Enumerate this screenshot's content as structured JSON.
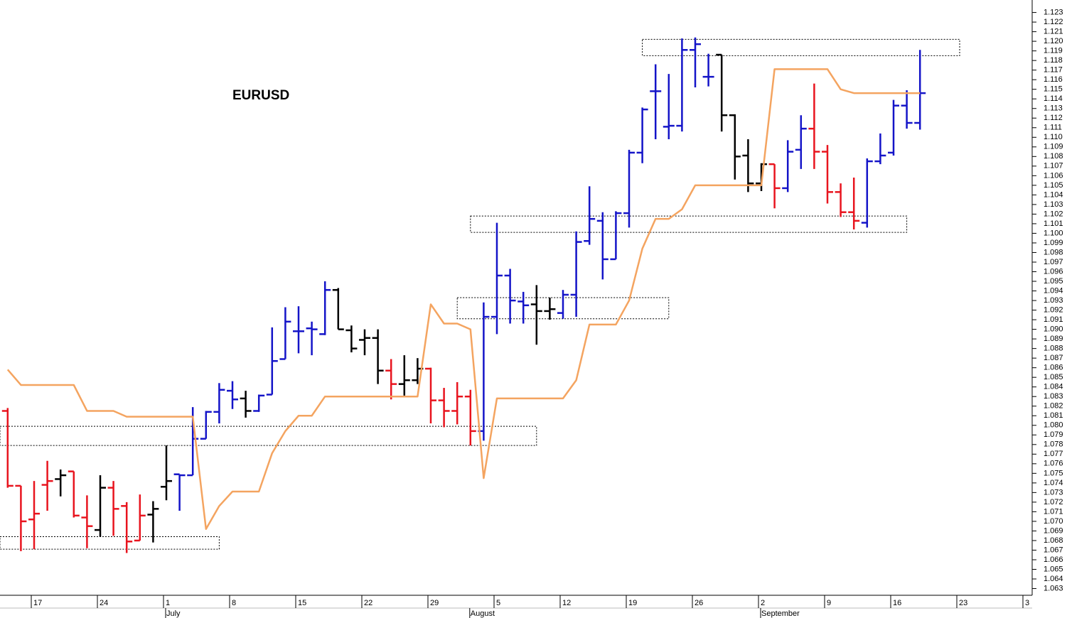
{
  "chart_data": {
    "type": "ohlc",
    "title": "EURUSD",
    "categories": [
      null,
      null,
      "17",
      null,
      null,
      null,
      null,
      "24",
      null,
      null,
      null,
      null,
      "1",
      null,
      null,
      null,
      null,
      "8",
      null,
      null,
      null,
      null,
      "15",
      null,
      null,
      null,
      null,
      "22",
      null,
      null,
      null,
      null,
      "29",
      null,
      null,
      null,
      null,
      "5",
      null,
      null,
      null,
      null,
      "12",
      null,
      null,
      null,
      null,
      "19",
      null,
      null,
      null,
      null,
      "26",
      null,
      null,
      null,
      null,
      "2",
      null,
      null,
      null,
      null,
      "9",
      null,
      null,
      null,
      null,
      "16",
      null,
      null,
      null,
      null,
      "23",
      null,
      null,
      null,
      null,
      "3"
    ],
    "months": [
      {
        "label": "July",
        "index": 12
      },
      {
        "label": "August",
        "index": 35
      },
      {
        "label": "September",
        "index": 57
      }
    ],
    "open": [
      1.0815,
      1.0737,
      1.0702,
      1.0738,
      1.0744,
      1.0752,
      1.0704,
      1.0691,
      1.0735,
      1.0716,
      1.068,
      1.0707,
      1.0736,
      1.0749,
      1.0748,
      1.0786,
      1.0814,
      1.0836,
      1.0828,
      1.0815,
      1.0832,
      1.0869,
      1.0898,
      1.0901,
      1.0895,
      1.0941,
      1.0899,
      1.0889,
      1.0891,
      1.0857,
      1.0843,
      1.0847,
      1.0859,
      1.0826,
      1.0815,
      1.083,
      1.0794,
      1.0913,
      1.0956,
      1.0929,
      1.0926,
      1.0919,
      1.0917,
      1.0936,
      1.0992,
      1.1013,
      1.0973,
      1.1021,
      1.1084,
      1.1148,
      1.1111,
      1.1112,
      1.1191,
      1.1163,
      1.1186,
      1.1123,
      1.1081,
      1.1052,
      1.1072,
      1.1047,
      1.1087,
      1.1109,
      1.1085,
      1.1043,
      1.1022,
      1.1011,
      1.1075,
      1.1084,
      1.1133,
      1.1115,
      null,
      null,
      null,
      null,
      null,
      null,
      null,
      null
    ],
    "high": [
      1.0818,
      1.0737,
      1.0742,
      1.0763,
      1.0754,
      1.0752,
      1.0727,
      1.0748,
      1.0742,
      1.072,
      1.0728,
      1.0721,
      1.0779,
      1.0749,
      1.0819,
      1.0815,
      1.0844,
      1.0846,
      1.0836,
      1.0832,
      1.0902,
      1.0923,
      1.0924,
      1.0908,
      1.095,
      1.0943,
      1.0904,
      1.09,
      1.09,
      1.0869,
      1.0873,
      1.087,
      1.086,
      1.0839,
      1.0845,
      1.0837,
      1.0928,
      1.1011,
      1.0963,
      1.0939,
      1.0946,
      1.0933,
      1.0941,
      1.1002,
      1.1049,
      1.1022,
      1.1023,
      1.1087,
      1.1131,
      1.1176,
      1.1166,
      1.1203,
      1.1204,
      1.1187,
      1.1186,
      1.1124,
      1.1098,
      1.1073,
      1.1072,
      1.1097,
      1.1123,
      1.1156,
      1.1092,
      1.1052,
      1.1058,
      1.1078,
      1.1104,
      1.1139,
      1.1149,
      1.1191,
      null,
      null,
      null,
      null,
      null,
      null,
      null,
      null
    ],
    "low": [
      1.0735,
      1.0669,
      1.0671,
      1.0711,
      1.0726,
      1.0704,
      1.0672,
      1.0684,
      1.0685,
      1.0667,
      1.068,
      1.0678,
      1.0722,
      1.0711,
      1.0748,
      1.0786,
      1.0802,
      1.0817,
      1.0808,
      1.0814,
      1.0832,
      1.0869,
      1.0875,
      1.0873,
      1.0894,
      1.09,
      1.0876,
      1.0873,
      1.0843,
      1.0827,
      1.0831,
      1.0843,
      1.0802,
      1.0798,
      1.0801,
      1.0779,
      1.0784,
      1.0895,
      1.0906,
      1.0906,
      1.0884,
      1.091,
      1.0911,
      1.0913,
      1.0988,
      1.0952,
      1.0973,
      1.1006,
      1.1073,
      1.1098,
      1.1098,
      1.1106,
      1.1152,
      1.1153,
      1.1106,
      1.1056,
      1.1043,
      1.1044,
      1.1026,
      1.1043,
      1.1067,
      1.1067,
      1.1031,
      1.1017,
      1.1004,
      1.1006,
      1.1072,
      1.1081,
      1.1109,
      1.1108,
      null,
      null,
      null,
      null,
      null,
      null,
      null,
      null
    ],
    "close": [
      1.0737,
      1.07,
      1.0708,
      1.0742,
      1.0748,
      1.0706,
      1.0695,
      1.0735,
      1.0713,
      1.0679,
      1.0706,
      1.0713,
      1.0742,
      1.0748,
      1.0786,
      1.0814,
      1.0837,
      1.0827,
      1.0815,
      1.0831,
      1.0867,
      1.0908,
      1.0898,
      1.09,
      1.0941,
      1.09,
      1.088,
      1.0891,
      1.0857,
      1.0843,
      1.0847,
      1.0859,
      1.0826,
      1.0815,
      1.083,
      1.0794,
      1.0913,
      1.0956,
      1.093,
      1.0925,
      1.0919,
      1.0921,
      1.0936,
      1.0991,
      1.1015,
      1.0973,
      1.1021,
      1.1084,
      1.1129,
      1.1148,
      1.1112,
      1.1191,
      1.1197,
      1.1163,
      1.1123,
      1.108,
      1.1052,
      1.1072,
      1.1047,
      1.1085,
      1.1109,
      1.1085,
      1.1043,
      1.1022,
      1.1013,
      1.1075,
      1.1081,
      1.1133,
      1.1115,
      1.1146,
      null,
      null,
      null,
      null,
      null,
      null,
      null,
      null
    ],
    "bar_colors": [
      "#e8141e",
      "#e8141e",
      "#e8141e",
      "#e8141e",
      "#000000",
      "#e8141e",
      "#e8141e",
      "#000000",
      "#e8141e",
      "#e8141e",
      "#e8141e",
      "#000000",
      "#000000",
      "#1414c8",
      "#1414c8",
      "#1414c8",
      "#1414c8",
      "#1414c8",
      "#000000",
      "#1414c8",
      "#1414c8",
      "#1414c8",
      "#1414c8",
      "#1414c8",
      "#1414c8",
      "#000000",
      "#000000",
      "#000000",
      "#000000",
      "#e8141e",
      "#000000",
      "#000000",
      "#e8141e",
      "#e8141e",
      "#e8141e",
      "#e8141e",
      "#1414c8",
      "#1414c8",
      "#1414c8",
      "#1414c8",
      "#000000",
      "#000000",
      "#1414c8",
      "#1414c8",
      "#1414c8",
      "#1414c8",
      "#1414c8",
      "#1414c8",
      "#1414c8",
      "#1414c8",
      "#1414c8",
      "#1414c8",
      "#1414c8",
      "#1414c8",
      "#000000",
      "#000000",
      "#000000",
      "#000000",
      "#e8141e",
      "#1414c8",
      "#1414c8",
      "#e8141e",
      "#e8141e",
      "#e8141e",
      "#e8141e",
      "#1414c8",
      "#1414c8",
      "#1414c8",
      "#1414c8",
      "#1414c8",
      null,
      null,
      null,
      null,
      null,
      null,
      null,
      null
    ],
    "line": {
      "color": "#f4a460",
      "values": [
        1.0858,
        1.0842,
        1.0842,
        1.0842,
        1.0842,
        1.0842,
        1.0815,
        1.0815,
        1.0815,
        1.0809,
        1.0809,
        1.0809,
        1.0809,
        1.0809,
        1.0809,
        1.0692,
        1.0716,
        1.0731,
        1.0731,
        1.0731,
        1.0771,
        1.0794,
        1.081,
        1.081,
        1.083,
        1.083,
        1.083,
        1.083,
        1.083,
        1.083,
        1.083,
        1.083,
        1.0926,
        1.0906,
        1.0906,
        1.09,
        1.0745,
        1.0828,
        1.0828,
        1.0828,
        1.0828,
        1.0828,
        1.0828,
        1.0847,
        1.0905,
        1.0905,
        1.0905,
        1.093,
        1.0984,
        1.1015,
        1.1015,
        1.1025,
        1.105,
        1.105,
        1.105,
        1.105,
        1.105,
        1.105,
        1.1171,
        1.1171,
        1.1171,
        1.1171,
        1.1171,
        1.115,
        1.1146,
        1.1146,
        1.1146,
        1.1146,
        1.1146,
        1.1146,
        null,
        null,
        null,
        null,
        null,
        null,
        null,
        null
      ]
    },
    "zones": [
      {
        "start": -0.6,
        "end": 16,
        "low": 1.0671,
        "high": 1.0684
      },
      {
        "start": -0.6,
        "end": 40,
        "low": 1.0779,
        "high": 1.0799
      },
      {
        "start": 34,
        "end": 50,
        "low": 1.0911,
        "high": 1.0933
      },
      {
        "start": 35,
        "end": 68,
        "low": 1.1001,
        "high": 1.1018
      },
      {
        "start": 48,
        "end": 72,
        "low": 1.1185,
        "high": 1.1202
      }
    ],
    "ylim": [
      1.0623,
      1.1243
    ],
    "yticks": [
      1.063,
      1.064,
      1.065,
      1.066,
      1.067,
      1.068,
      1.069,
      {
        "value": 1.07,
        "label": "1.070"
      },
      1.071,
      1.072,
      1.073,
      1.074,
      1.075,
      1.076,
      1.077,
      1.078,
      1.079,
      {
        "value": 1.08,
        "label": "1.080"
      },
      1.081,
      1.082,
      1.083,
      1.084,
      1.085,
      1.086,
      1.087,
      1.088,
      1.089,
      {
        "value": 1.09,
        "label": "1.090"
      },
      1.091,
      1.092,
      1.093,
      1.094,
      1.095,
      1.096,
      1.097,
      1.098,
      1.099,
      {
        "value": 1.1,
        "label": "1.100"
      },
      1.101,
      1.102,
      1.103,
      1.104,
      1.105,
      1.106,
      1.107,
      1.108,
      1.109,
      {
        "value": 1.11,
        "label": "1.110"
      },
      1.111,
      1.112,
      1.113,
      1.114,
      1.115,
      1.116,
      1.117,
      1.118,
      1.119,
      {
        "value": 1.12,
        "label": "1.120"
      },
      1.121,
      1.122,
      1.123
    ]
  }
}
